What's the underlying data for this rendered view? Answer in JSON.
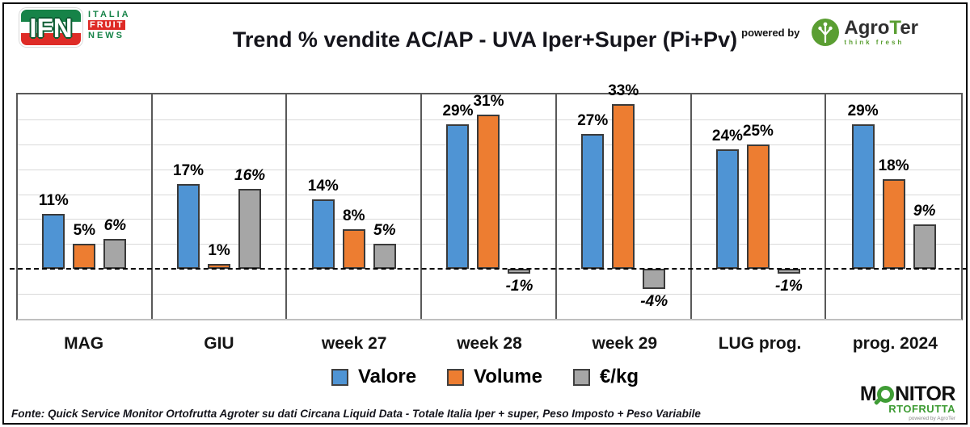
{
  "header": {
    "title": "Trend % vendite AC/AP - UVA  Iper+Super (Pi+Pv)",
    "ifn_logo": {
      "acronym": "IFN",
      "line1": "ITALIA",
      "line2": "FRUIT",
      "line3": "NEWS"
    },
    "powered_by": "powered by",
    "agroter": {
      "name_pre": "Agro",
      "name_t": "T",
      "name_post": "er",
      "tagline": "think fresh"
    }
  },
  "chart_data": {
    "type": "bar",
    "title": "Trend % vendite AC/AP - UVA  Iper+Super (Pi+Pv)",
    "categories": [
      "MAG",
      "GIU",
      "week 27",
      "week 28",
      "week 29",
      "LUG prog.",
      "prog. 2024"
    ],
    "series": [
      {
        "id": "valore",
        "name": "Valore",
        "color": "#4f94d4",
        "labels_italic": false,
        "values": [
          11,
          17,
          14,
          29,
          27,
          24,
          29
        ]
      },
      {
        "id": "volume",
        "name": "Volume",
        "color": "#ed7d31",
        "labels_italic": false,
        "values": [
          5,
          1,
          8,
          31,
          33,
          25,
          18
        ]
      },
      {
        "id": "eur_per_kg",
        "name": "€/kg",
        "color": "#a6a6a6",
        "labels_italic": true,
        "values": [
          6,
          16,
          5,
          -1,
          -4,
          -1,
          9
        ]
      }
    ],
    "value_suffix": "%",
    "ylim": [
      -10,
      35
    ],
    "grid_step": 5,
    "grid": true,
    "zero_line": "dashed",
    "legend_position": "bottom",
    "xlabel": "",
    "ylabel": ""
  },
  "footer": {
    "source": "Fonte: Quick Service Monitor Ortofrutta Agroter su dati Circana Liquid Data - Totale Italia Iper + super, Peso Imposto + Peso Variabile",
    "monitor_logo": {
      "line1_m": "M",
      "line1_rest": "NITOR",
      "line2": "RTOFRUTTA",
      "powered": "powered by AgroTer"
    }
  }
}
